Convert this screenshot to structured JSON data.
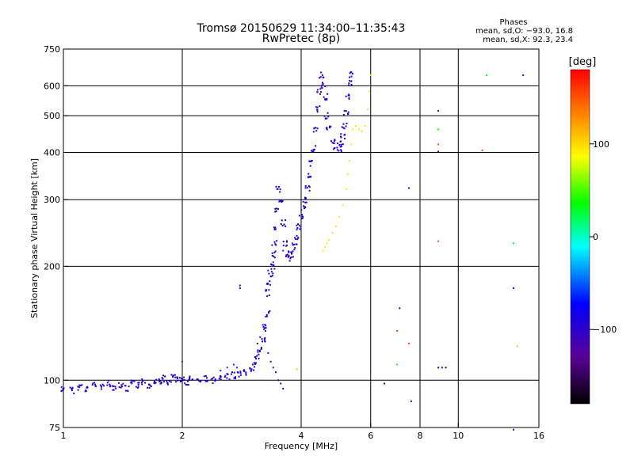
{
  "chart_data": {
    "type": "scatter",
    "title": "Tromsø 20150629 11:34:00–11:35:43",
    "subtitle": "RwPretec (8p)",
    "stats": {
      "heading": "Phases",
      "line1": "mean, sd,O: −93.0, 16.8",
      "line2": "mean, sd,X:  92.3, 23.4"
    },
    "xlabel": "Frequency [MHz]",
    "ylabel": "Stationary phase Virtual Height [km]",
    "x_scale": "log2",
    "y_scale": "log",
    "xlim": [
      1,
      16
    ],
    "ylim": [
      75,
      750
    ],
    "x_ticks": [
      {
        "value": 1,
        "label": "1"
      },
      {
        "value": 2,
        "label": "2"
      },
      {
        "value": 4,
        "label": "4"
      },
      {
        "value": 6,
        "label": "6"
      },
      {
        "value": 8,
        "label": "8"
      },
      {
        "value": 10,
        "label": "10"
      },
      {
        "value": 16,
        "label": "16"
      }
    ],
    "x_gridlines": [
      2,
      4,
      6,
      8,
      10
    ],
    "y_ticks": [
      {
        "value": 75,
        "label": "75"
      },
      {
        "value": 100,
        "label": "100"
      },
      {
        "value": 200,
        "label": "200"
      },
      {
        "value": 300,
        "label": "300"
      },
      {
        "value": 400,
        "label": "400"
      },
      {
        "value": 500,
        "label": "500"
      },
      {
        "value": 600,
        "label": "600"
      },
      {
        "value": 750,
        "label": "750"
      }
    ],
    "y_gridlines": [
      100,
      200,
      300,
      400,
      500,
      600
    ],
    "grid": true,
    "colorbar": {
      "label": "[deg]",
      "range": [
        -180,
        180
      ],
      "ticks": [
        {
          "value": 100,
          "label": "100"
        },
        {
          "value": 0,
          "label": "0"
        },
        {
          "value": -100,
          "label": "−100"
        }
      ],
      "stops": [
        "#000000",
        "#5a0096",
        "#0000ff",
        "#00ffff",
        "#00ff00",
        "#ffff00",
        "#ff8000",
        "#ff0000"
      ]
    },
    "series": [
      {
        "phase_deg": -95,
        "description_trace": "ground echo band",
        "points": [
          [
            1.0,
            95
          ],
          [
            1.05,
            94
          ],
          [
            1.1,
            96
          ],
          [
            1.15,
            95
          ],
          [
            1.2,
            97
          ],
          [
            1.25,
            96
          ],
          [
            1.3,
            98
          ],
          [
            1.35,
            96
          ],
          [
            1.4,
            97
          ],
          [
            1.45,
            95
          ],
          [
            1.5,
            98
          ],
          [
            1.55,
            97
          ],
          [
            1.6,
            99
          ],
          [
            1.65,
            97
          ],
          [
            1.7,
            100
          ],
          [
            1.75,
            99
          ],
          [
            1.8,
            101
          ],
          [
            1.85,
            99
          ],
          [
            1.9,
            102
          ],
          [
            1.95,
            100
          ],
          [
            2.0,
            100
          ],
          [
            2.05,
            99
          ],
          [
            2.1,
            101
          ],
          [
            2.2,
            100
          ],
          [
            2.3,
            101
          ],
          [
            2.4,
            100
          ],
          [
            2.5,
            101
          ],
          [
            2.6,
            102
          ],
          [
            2.7,
            103
          ],
          [
            2.8,
            104
          ],
          [
            2.9,
            105
          ],
          [
            3.0,
            107
          ],
          [
            3.05,
            110
          ],
          [
            3.1,
            115
          ],
          [
            3.15,
            120
          ],
          [
            3.2,
            128
          ],
          [
            3.25,
            138
          ],
          [
            3.3,
            150
          ]
        ]
      },
      {
        "phase_deg": -100,
        "points": [
          [
            3.3,
            170
          ],
          [
            3.32,
            180
          ],
          [
            3.35,
            190
          ],
          [
            3.38,
            200
          ],
          [
            3.4,
            215
          ],
          [
            3.42,
            230
          ],
          [
            3.45,
            250
          ],
          [
            3.48,
            280
          ],
          [
            3.5,
            320
          ],
          [
            3.55,
            300
          ],
          [
            3.6,
            260
          ],
          [
            3.65,
            230
          ],
          [
            3.7,
            215
          ],
          [
            3.75,
            210
          ],
          [
            3.8,
            215
          ],
          [
            3.85,
            225
          ],
          [
            3.9,
            240
          ],
          [
            3.95,
            255
          ],
          [
            4.0,
            270
          ],
          [
            4.05,
            285
          ],
          [
            4.1,
            300
          ],
          [
            4.15,
            320
          ],
          [
            4.2,
            345
          ],
          [
            4.25,
            375
          ],
          [
            4.3,
            410
          ],
          [
            4.35,
            460
          ],
          [
            4.4,
            520
          ],
          [
            4.45,
            580
          ],
          [
            4.5,
            640
          ],
          [
            4.55,
            600
          ],
          [
            4.6,
            560
          ],
          [
            4.65,
            500
          ],
          [
            4.7,
            460
          ],
          [
            4.8,
            430
          ],
          [
            4.9,
            415
          ],
          [
            5.0,
            410
          ],
          [
            5.05,
            420
          ],
          [
            5.1,
            440
          ],
          [
            5.15,
            470
          ],
          [
            5.2,
            510
          ],
          [
            5.25,
            560
          ],
          [
            5.3,
            610
          ],
          [
            5.35,
            640
          ]
        ]
      },
      {
        "phase_deg": 95,
        "points": [
          [
            4.55,
            220
          ],
          [
            4.6,
            225
          ],
          [
            4.65,
            230
          ],
          [
            4.7,
            235
          ],
          [
            4.8,
            245
          ],
          [
            4.9,
            255
          ],
          [
            5.0,
            270
          ],
          [
            5.1,
            290
          ],
          [
            5.2,
            320
          ],
          [
            5.25,
            350
          ],
          [
            5.3,
            380
          ],
          [
            5.35,
            420
          ],
          [
            5.4,
            460
          ],
          [
            5.5,
            470
          ],
          [
            5.6,
            460
          ],
          [
            5.7,
            455
          ],
          [
            5.8,
            470
          ],
          [
            5.9,
            520
          ],
          [
            5.95,
            580
          ],
          [
            6.0,
            640
          ]
        ]
      },
      {
        "phase_deg": -110,
        "points": [
          [
            3.1,
            125
          ],
          [
            3.15,
            130
          ],
          [
            3.2,
            140
          ],
          [
            3.25,
            135
          ],
          [
            3.3,
            118
          ],
          [
            3.35,
            112
          ],
          [
            3.4,
            108
          ],
          [
            3.45,
            105
          ],
          [
            3.5,
            100
          ],
          [
            3.55,
            98
          ],
          [
            3.6,
            95
          ],
          [
            2.8,
            178
          ],
          [
            2.8,
            175
          ]
        ]
      },
      {
        "phase_deg": -60,
        "points": [
          [
            2.5,
            106
          ],
          [
            2.6,
            108
          ],
          [
            2.7,
            110
          ],
          [
            2.75,
            108
          ],
          [
            2.9,
            104
          ],
          [
            3.3,
            195
          ],
          [
            3.4,
            205
          ],
          [
            3.6,
            220
          ],
          [
            3.8,
            230
          ],
          [
            3.9,
            250
          ],
          [
            2.0,
            112
          ]
        ]
      },
      {
        "phase_deg": -100,
        "points": [
          [
            7.1,
            155
          ],
          [
            7.5,
            322
          ],
          [
            8.9,
            515
          ],
          [
            8.9,
            402
          ],
          [
            8.9,
            108
          ],
          [
            9.1,
            108
          ],
          [
            9.3,
            108
          ],
          [
            13.8,
            175
          ],
          [
            13.8,
            74
          ],
          [
            14.6,
            640
          ],
          [
            7.6,
            88
          ],
          [
            6.5,
            98
          ]
        ]
      },
      {
        "phase_deg": 40,
        "points": [
          [
            8.9,
            460
          ],
          [
            8.9,
            460
          ]
        ]
      },
      {
        "phase_deg": 150,
        "points": [
          [
            8.9,
            420
          ],
          [
            8.9,
            233
          ],
          [
            7.0,
            135
          ],
          [
            7.5,
            125
          ],
          [
            11.5,
            405
          ]
        ]
      },
      {
        "phase_deg": 30,
        "points": [
          [
            7.0,
            110
          ],
          [
            11.8,
            640
          ],
          [
            13.8,
            230
          ]
        ]
      },
      {
        "phase_deg": 110,
        "points": [
          [
            14.1,
            123
          ],
          [
            3.9,
            107
          ]
        ]
      }
    ]
  }
}
